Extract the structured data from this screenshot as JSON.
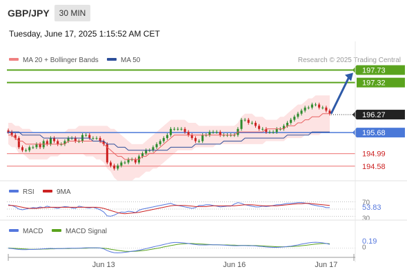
{
  "header": {
    "pair": "GBP/JPY",
    "timeframe": "30 MIN",
    "timestamp": "Tuesday, June 17, 2025 1:15:52 AM CET",
    "credit": "Research © 2025 Trading Central"
  },
  "colors": {
    "up": "#2e8b2e",
    "down": "#cc2222",
    "ma20": "#e86060",
    "ma50": "#2e4f9a",
    "band_fill": "#fde0e0",
    "resistance": "#5aa31e",
    "support": "#f08a8a",
    "pivot": "#4a78d8",
    "arrow": "#2e5aa8",
    "rsi": "#5577dd",
    "rsi_ma": "#cc2222",
    "macd": "#5577dd",
    "macd_signal": "#5aa31e"
  },
  "chart_data": [
    {
      "type": "candlestick",
      "legend": [
        {
          "name": "MA 20 + Bollinger Bands",
          "color": "#f08080"
        },
        {
          "name": "MA 50",
          "color": "#2e4f9a"
        }
      ],
      "x_ticks": [
        "Jun 13",
        "Jun 16",
        "Jun 17"
      ],
      "ylim": [
        194.1,
        197.9
      ],
      "levels": [
        {
          "value": 197.73,
          "label": "197.73",
          "kind": "resistance"
        },
        {
          "value": 197.32,
          "label": "197.32",
          "kind": "resistance"
        },
        {
          "value": 196.27,
          "label": "196.27",
          "kind": "last"
        },
        {
          "value": 195.68,
          "label": "195.68",
          "kind": "pivot"
        },
        {
          "value": 194.99,
          "label": "194.99",
          "kind": "support"
        },
        {
          "value": 194.58,
          "label": "194.58",
          "kind": "support"
        }
      ],
      "closes": [
        195.7,
        195.6,
        195.5,
        195.2,
        195.1,
        195.1,
        195.2,
        195.2,
        195.3,
        195.2,
        195.4,
        195.3,
        195.5,
        195.4,
        195.3,
        195.3,
        195.4,
        195.5,
        195.5,
        195.4,
        195.4,
        195.6,
        195.6,
        195.5,
        195.5,
        195.5,
        195.4,
        195.3,
        194.7,
        194.6,
        194.5,
        194.6,
        194.7,
        194.7,
        194.8,
        194.8,
        194.7,
        194.9,
        195.0,
        195.1,
        195.1,
        195.2,
        195.3,
        195.4,
        195.5,
        195.6,
        195.8,
        195.8,
        195.8,
        195.8,
        195.7,
        195.6,
        195.5,
        195.4,
        195.4,
        195.6,
        195.6,
        195.7,
        195.7,
        195.7,
        195.6,
        195.6,
        195.6,
        195.6,
        195.6,
        195.8,
        196.1,
        196.1,
        196.0,
        196.0,
        195.9,
        195.8,
        195.8,
        195.7,
        195.7,
        195.7,
        195.8,
        195.8,
        195.9,
        196.0,
        196.1,
        196.2,
        196.3,
        196.4,
        196.5,
        196.5,
        196.6,
        196.6,
        196.5,
        196.5,
        196.4,
        196.3
      ],
      "ma20": [
        195.6,
        195.6,
        195.5,
        195.4,
        195.4,
        195.3,
        195.3,
        195.3,
        195.3,
        195.3,
        195.3,
        195.3,
        195.3,
        195.3,
        195.3,
        195.3,
        195.3,
        195.4,
        195.4,
        195.4,
        195.4,
        195.4,
        195.4,
        195.4,
        195.4,
        195.4,
        195.4,
        195.3,
        195.2,
        195.1,
        195.0,
        194.9,
        194.9,
        194.8,
        194.8,
        194.8,
        194.8,
        194.8,
        194.9,
        194.9,
        195.0,
        195.0,
        195.1,
        195.2,
        195.3,
        195.4,
        195.5,
        195.6,
        195.6,
        195.6,
        195.6,
        195.6,
        195.6,
        195.6,
        195.6,
        195.6,
        195.6,
        195.6,
        195.6,
        195.6,
        195.6,
        195.6,
        195.6,
        195.6,
        195.6,
        195.7,
        195.7,
        195.7,
        195.7,
        195.7,
        195.7,
        195.7,
        195.7,
        195.8,
        195.8,
        195.8,
        195.8,
        195.8,
        195.8,
        195.9,
        195.9,
        195.9,
        196.0,
        196.0,
        196.1,
        196.1,
        196.2,
        196.2,
        196.2,
        196.3,
        196.3,
        196.3
      ],
      "ma50": [
        195.7,
        195.7,
        195.7,
        195.7,
        195.6,
        195.6,
        195.6,
        195.6,
        195.6,
        195.6,
        195.5,
        195.5,
        195.5,
        195.5,
        195.5,
        195.5,
        195.5,
        195.5,
        195.5,
        195.5,
        195.5,
        195.5,
        195.5,
        195.5,
        195.4,
        195.4,
        195.4,
        195.4,
        195.3,
        195.3,
        195.3,
        195.2,
        195.2,
        195.2,
        195.1,
        195.1,
        195.1,
        195.1,
        195.1,
        195.1,
        195.1,
        195.1,
        195.1,
        195.1,
        195.1,
        195.1,
        195.2,
        195.2,
        195.2,
        195.2,
        195.2,
        195.2,
        195.2,
        195.3,
        195.3,
        195.3,
        195.3,
        195.3,
        195.3,
        195.3,
        195.3,
        195.4,
        195.4,
        195.4,
        195.4,
        195.4,
        195.4,
        195.5,
        195.5,
        195.5,
        195.5,
        195.5,
        195.5,
        195.5,
        195.5,
        195.5,
        195.5,
        195.5,
        195.5,
        195.6,
        195.6,
        195.6,
        195.6,
        195.6,
        195.6,
        195.6,
        195.7,
        195.7,
        195.7,
        195.7,
        195.7,
        195.7
      ],
      "band_upper": [
        196.0,
        196.0,
        195.9,
        195.9,
        195.8,
        195.8,
        195.8,
        195.7,
        195.7,
        195.7,
        195.7,
        195.7,
        195.7,
        195.7,
        195.7,
        195.7,
        195.7,
        195.8,
        195.8,
        195.8,
        195.9,
        195.9,
        195.9,
        195.9,
        195.9,
        195.9,
        195.9,
        195.9,
        195.9,
        195.8,
        195.8,
        195.7,
        195.6,
        195.5,
        195.4,
        195.3,
        195.3,
        195.3,
        195.3,
        195.4,
        195.5,
        195.6,
        195.7,
        195.8,
        195.9,
        196.0,
        196.1,
        196.1,
        196.1,
        196.1,
        196.1,
        196.0,
        196.0,
        196.0,
        195.9,
        195.9,
        195.9,
        195.9,
        195.9,
        195.9,
        195.9,
        195.9,
        195.9,
        195.9,
        195.9,
        196.0,
        196.2,
        196.3,
        196.3,
        196.3,
        196.2,
        196.2,
        196.2,
        196.1,
        196.1,
        196.1,
        196.1,
        196.2,
        196.2,
        196.3,
        196.4,
        196.5,
        196.6,
        196.6,
        196.7,
        196.8,
        196.8,
        196.9,
        196.9,
        196.9,
        196.9,
        196.9
      ],
      "band_lower": [
        195.3,
        195.2,
        195.2,
        195.0,
        195.0,
        194.9,
        194.8,
        194.8,
        194.8,
        194.8,
        194.8,
        194.8,
        194.9,
        194.9,
        194.9,
        195.0,
        195.0,
        195.0,
        195.0,
        195.0,
        195.0,
        195.0,
        194.9,
        194.9,
        194.9,
        194.8,
        194.8,
        194.7,
        194.5,
        194.4,
        194.2,
        194.1,
        194.1,
        194.1,
        194.1,
        194.1,
        194.2,
        194.2,
        194.3,
        194.4,
        194.4,
        194.5,
        194.5,
        194.6,
        194.7,
        194.8,
        194.9,
        195.0,
        195.1,
        195.1,
        195.1,
        195.1,
        195.1,
        195.2,
        195.2,
        195.2,
        195.2,
        195.2,
        195.2,
        195.3,
        195.3,
        195.3,
        195.3,
        195.3,
        195.3,
        195.3,
        195.3,
        195.3,
        195.3,
        195.3,
        195.3,
        195.3,
        195.3,
        195.4,
        195.4,
        195.4,
        195.4,
        195.4,
        195.4,
        195.5,
        195.5,
        195.5,
        195.5,
        195.5,
        195.6,
        195.6,
        195.6,
        195.6,
        195.6,
        195.7,
        195.7,
        195.7
      ]
    },
    {
      "type": "line",
      "legend": [
        {
          "name": "RSI",
          "color": "#5577dd"
        },
        {
          "name": "9MA",
          "color": "#cc2222"
        }
      ],
      "ylim": [
        25,
        75
      ],
      "ticks": [
        "70",
        "30"
      ],
      "ref_lines": [
        70,
        50,
        30
      ],
      "last_value": "53.83",
      "rsi": [
        62,
        60,
        56,
        50,
        48,
        50,
        52,
        54,
        53,
        56,
        54,
        58,
        55,
        54,
        52,
        55,
        57,
        56,
        53,
        52,
        58,
        56,
        54,
        53,
        55,
        52,
        48,
        42,
        31,
        30,
        33,
        38,
        42,
        41,
        44,
        43,
        40,
        47,
        50,
        52,
        54,
        56,
        58,
        60,
        62,
        64,
        66,
        62,
        60,
        58,
        56,
        54,
        52,
        54,
        60,
        60,
        62,
        62,
        60,
        58,
        56,
        57,
        58,
        58,
        64,
        68,
        66,
        62,
        60,
        58,
        56,
        56,
        58,
        57,
        58,
        60,
        62,
        62,
        64,
        66,
        66,
        67,
        68,
        68,
        67,
        65,
        62,
        60,
        58,
        57,
        54,
        54
      ],
      "rsi_ma": [
        60,
        60,
        59,
        57,
        55,
        53,
        52,
        52,
        52,
        53,
        54,
        54,
        55,
        55,
        55,
        55,
        55,
        55,
        55,
        55,
        55,
        55,
        55,
        55,
        55,
        55,
        54,
        52,
        49,
        46,
        43,
        40,
        38,
        37,
        38,
        39,
        40,
        41,
        43,
        45,
        47,
        49,
        51,
        53,
        55,
        57,
        59,
        60,
        60,
        60,
        60,
        59,
        58,
        57,
        57,
        57,
        57,
        58,
        59,
        59,
        59,
        59,
        59,
        59,
        59,
        60,
        61,
        62,
        62,
        62,
        61,
        60,
        59,
        59,
        59,
        59,
        59,
        60,
        61,
        62,
        63,
        64,
        65,
        65,
        66,
        66,
        65,
        64,
        63,
        62,
        61,
        60
      ]
    },
    {
      "type": "line",
      "legend": [
        {
          "name": "MACD",
          "color": "#5577dd"
        },
        {
          "name": "MACD Signal",
          "color": "#5aa31e"
        }
      ],
      "ticks": [
        "0"
      ],
      "last_value": "0.19",
      "ylim": [
        -0.35,
        0.6
      ],
      "macd": [
        0.0,
        -0.02,
        -0.04,
        -0.06,
        -0.07,
        -0.07,
        -0.06,
        -0.06,
        -0.05,
        -0.04,
        -0.03,
        -0.02,
        -0.01,
        -0.02,
        -0.02,
        -0.02,
        -0.01,
        0.0,
        0.0,
        0.0,
        0.0,
        0.01,
        0.02,
        0.02,
        0.02,
        0.02,
        0.01,
        -0.03,
        -0.12,
        -0.18,
        -0.22,
        -0.23,
        -0.22,
        -0.2,
        -0.18,
        -0.15,
        -0.13,
        -0.1,
        -0.06,
        -0.02,
        0.02,
        0.06,
        0.1,
        0.14,
        0.18,
        0.22,
        0.26,
        0.28,
        0.28,
        0.27,
        0.25,
        0.23,
        0.2,
        0.18,
        0.16,
        0.16,
        0.16,
        0.17,
        0.17,
        0.17,
        0.16,
        0.15,
        0.14,
        0.13,
        0.12,
        0.12,
        0.13,
        0.13,
        0.12,
        0.12,
        0.11,
        0.09,
        0.08,
        0.06,
        0.05,
        0.04,
        0.04,
        0.05,
        0.06,
        0.08,
        0.1,
        0.13,
        0.16,
        0.2,
        0.23,
        0.26,
        0.28,
        0.29,
        0.28,
        0.26,
        0.23,
        0.19
      ],
      "macd_signal": [
        0.01,
        0.0,
        -0.01,
        -0.02,
        -0.03,
        -0.04,
        -0.05,
        -0.05,
        -0.05,
        -0.05,
        -0.04,
        -0.04,
        -0.03,
        -0.03,
        -0.02,
        -0.02,
        -0.02,
        -0.02,
        -0.01,
        -0.01,
        0.0,
        0.0,
        0.0,
        0.01,
        0.01,
        0.01,
        0.01,
        0.0,
        -0.02,
        -0.05,
        -0.08,
        -0.11,
        -0.13,
        -0.15,
        -0.16,
        -0.16,
        -0.15,
        -0.14,
        -0.12,
        -0.1,
        -0.07,
        -0.04,
        -0.01,
        0.02,
        0.06,
        0.09,
        0.13,
        0.16,
        0.19,
        0.21,
        0.22,
        0.23,
        0.23,
        0.22,
        0.21,
        0.2,
        0.19,
        0.18,
        0.17,
        0.17,
        0.17,
        0.16,
        0.16,
        0.15,
        0.15,
        0.14,
        0.14,
        0.14,
        0.14,
        0.13,
        0.13,
        0.12,
        0.11,
        0.1,
        0.09,
        0.08,
        0.07,
        0.07,
        0.07,
        0.07,
        0.08,
        0.09,
        0.1,
        0.12,
        0.14,
        0.16,
        0.18,
        0.2,
        0.22,
        0.23,
        0.23,
        0.22
      ]
    }
  ]
}
